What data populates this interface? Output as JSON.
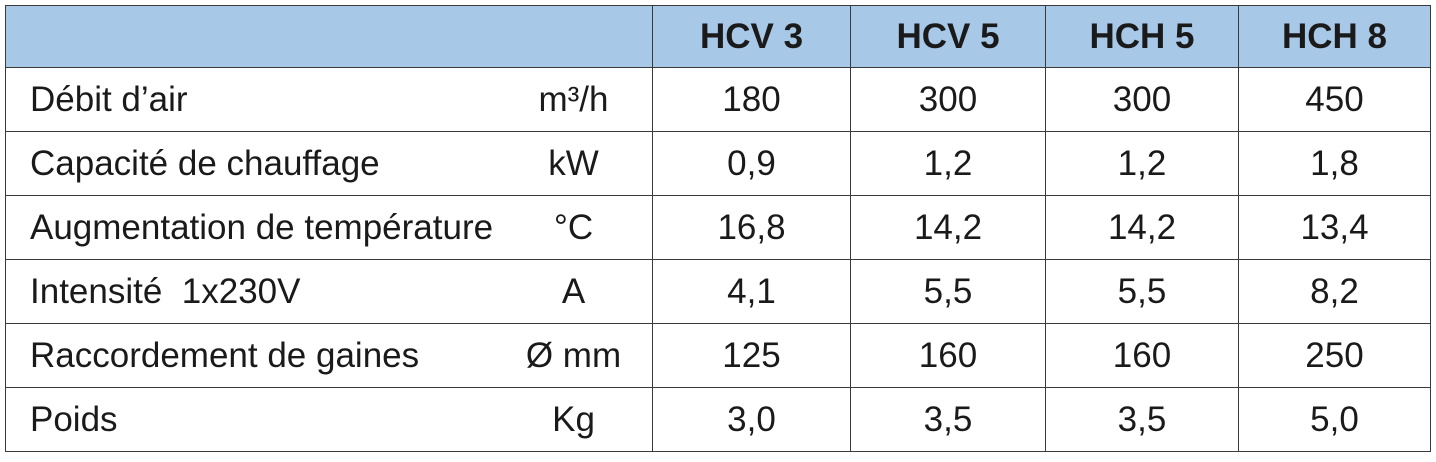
{
  "table": {
    "columns": [
      "HCV 3",
      "HCV 5",
      "HCH 5",
      "HCH 8"
    ],
    "rows": [
      {
        "label": "Débit d’air",
        "unit": "m³/h",
        "values": [
          "180",
          "300",
          "300",
          "450"
        ]
      },
      {
        "label": "Capacité de chauffage",
        "unit": "kW",
        "values": [
          "0,9",
          "1,2",
          "1,2",
          "1,8"
        ]
      },
      {
        "label": "Augmentation de température",
        "unit": "°C",
        "values": [
          "16,8",
          "14,2",
          "14,2",
          "13,4"
        ]
      },
      {
        "label": "Intensité  1x230V",
        "unit": "A",
        "values": [
          "4,1",
          "5,5",
          "5,5",
          "8,2"
        ]
      },
      {
        "label": "Raccordement de gaines",
        "unit": "Ø mm",
        "values": [
          "125",
          "160",
          "160",
          "250"
        ]
      },
      {
        "label": "Poids",
        "unit": "Kg",
        "values": [
          "3,0",
          "3,5",
          "3,5",
          "5,0"
        ]
      }
    ]
  }
}
